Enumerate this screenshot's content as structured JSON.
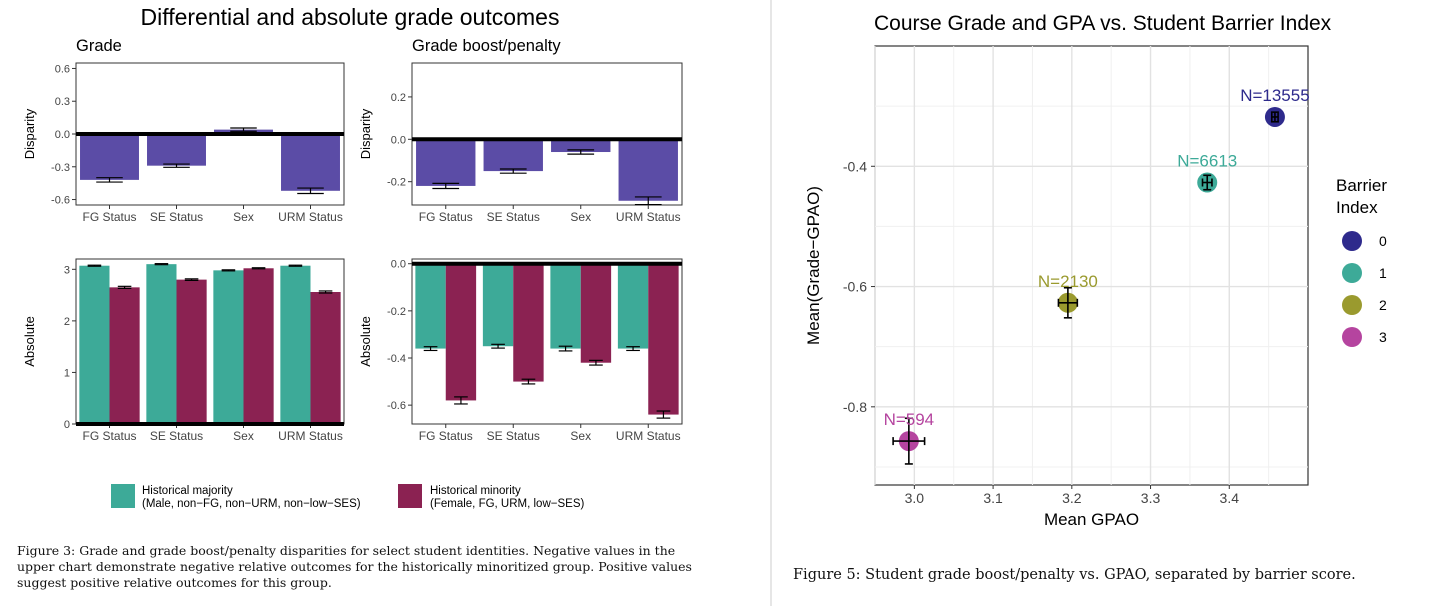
{
  "left_figure": {
    "title": "Differential and absolute grade outcomes",
    "col_titles": [
      "Grade",
      "Grade boost/penalty"
    ],
    "legend": {
      "majority": {
        "line1": "Historical majority",
        "line2": "(Male, non−FG, non−URM, non−low−SES)",
        "color": "#3daa98"
      },
      "minority": {
        "line1": "Historical minority",
        "line2": "(Female, FG, URM, low−SES)",
        "color": "#8b2252"
      }
    },
    "caption": [
      "Figure 3:  Grade and grade boost/penalty disparities for select student identities.  Negative values in the",
      "upper chart demonstrate negative relative outcomes for the historically minoritized group. Positive values",
      "suggest positive relative outcomes for this group."
    ]
  },
  "right_figure": {
    "caption": "Figure 5: Student grade boost/penalty vs. GPAO, separated by barrier score."
  },
  "chart_data": [
    {
      "type": "bar",
      "title": "Grade",
      "ylabel": "Disparity",
      "categories": [
        "FG Status",
        "SE Status",
        "Sex",
        "URM Status"
      ],
      "values": [
        -0.42,
        -0.29,
        0.04,
        -0.52
      ],
      "errors": [
        0.02,
        0.015,
        0.015,
        0.025
      ],
      "ylim": [
        -0.65,
        0.65
      ],
      "yticks": [
        0.6,
        0.3,
        0.0,
        -0.3,
        -0.6
      ],
      "ytick_labels": [
        "0.6",
        "0.3",
        "0.0",
        "-0.3",
        "-0.6"
      ],
      "color": "#5b4ca6"
    },
    {
      "type": "bar",
      "title": "Grade boost/penalty",
      "ylabel": "Disparity",
      "categories": [
        "FG Status",
        "SE Status",
        "Sex",
        "URM Status"
      ],
      "values": [
        -0.22,
        -0.15,
        -0.06,
        -0.29
      ],
      "errors": [
        0.012,
        0.01,
        0.01,
        0.018
      ],
      "ylim": [
        -0.31,
        0.36
      ],
      "yticks": [
        0.2,
        0.0,
        -0.2
      ],
      "ytick_labels": [
        "0.2",
        "0.0",
        "-0.2"
      ],
      "color": "#5b4ca6"
    },
    {
      "type": "bar",
      "ylabel": "Absolute",
      "categories": [
        "FG Status",
        "SE Status",
        "Sex",
        "URM Status"
      ],
      "series": [
        {
          "name": "Historical majority",
          "values": [
            3.07,
            3.1,
            2.98,
            3.07
          ],
          "errors": [
            0.01,
            0.01,
            0.01,
            0.01
          ],
          "color": "#3daa98"
        },
        {
          "name": "Historical minority",
          "values": [
            2.65,
            2.8,
            3.02,
            2.56
          ],
          "errors": [
            0.02,
            0.015,
            0.01,
            0.02
          ],
          "color": "#8b2252"
        }
      ],
      "ylim": [
        0,
        3.2
      ],
      "yticks": [
        3,
        2,
        1,
        0
      ],
      "ytick_labels": [
        "3",
        "2",
        "1",
        "0"
      ]
    },
    {
      "type": "bar",
      "ylabel": "Absolute",
      "categories": [
        "FG Status",
        "SE Status",
        "Sex",
        "URM Status"
      ],
      "series": [
        {
          "name": "Historical majority",
          "values": [
            -0.36,
            -0.35,
            -0.36,
            -0.36
          ],
          "errors": [
            0.008,
            0.008,
            0.01,
            0.008
          ],
          "color": "#3daa98"
        },
        {
          "name": "Historical minority",
          "values": [
            -0.58,
            -0.5,
            -0.42,
            -0.64
          ],
          "errors": [
            0.015,
            0.01,
            0.01,
            0.015
          ],
          "color": "#8b2252"
        }
      ],
      "ylim": [
        -0.68,
        0.02
      ],
      "yticks": [
        0.0,
        -0.2,
        -0.4,
        -0.6
      ],
      "ytick_labels": [
        "0.0",
        "-0.2",
        "-0.4",
        "-0.6"
      ]
    },
    {
      "type": "scatter",
      "title": "Course Grade and GPA vs. Student Barrier Index",
      "xlabel": "Mean GPAO",
      "ylabel": "Mean(Grade−GPAO)",
      "xlim": [
        2.95,
        3.5
      ],
      "ylim": [
        -0.93,
        -0.2
      ],
      "xticks": [
        3.0,
        3.1,
        3.2,
        3.3,
        3.4
      ],
      "xtick_labels": [
        "3.0",
        "3.1",
        "3.2",
        "3.3",
        "3.4"
      ],
      "yticks": [
        -0.4,
        -0.6,
        -0.8
      ],
      "ytick_labels": [
        "-0.4",
        "-0.6",
        "-0.8"
      ],
      "grid": true,
      "legend_title": [
        "Barrier",
        "Index"
      ],
      "legend_position": "right",
      "points": [
        {
          "index": "0",
          "x": 3.458,
          "y": -0.318,
          "xerr": 0.004,
          "yerr": 0.008,
          "label": "N=13555",
          "color": "#2e2a8c"
        },
        {
          "index": "1",
          "x": 3.372,
          "y": -0.427,
          "xerr": 0.006,
          "yerr": 0.012,
          "label": "N=6613",
          "color": "#3daa98"
        },
        {
          "index": "2",
          "x": 3.195,
          "y": -0.627,
          "xerr": 0.012,
          "yerr": 0.025,
          "label": "N=2130",
          "color": "#9a9a2e"
        },
        {
          "index": "3",
          "x": 2.993,
          "y": -0.857,
          "xerr": 0.02,
          "yerr": 0.038,
          "label": "N=594",
          "color": "#b5449f"
        }
      ]
    }
  ]
}
